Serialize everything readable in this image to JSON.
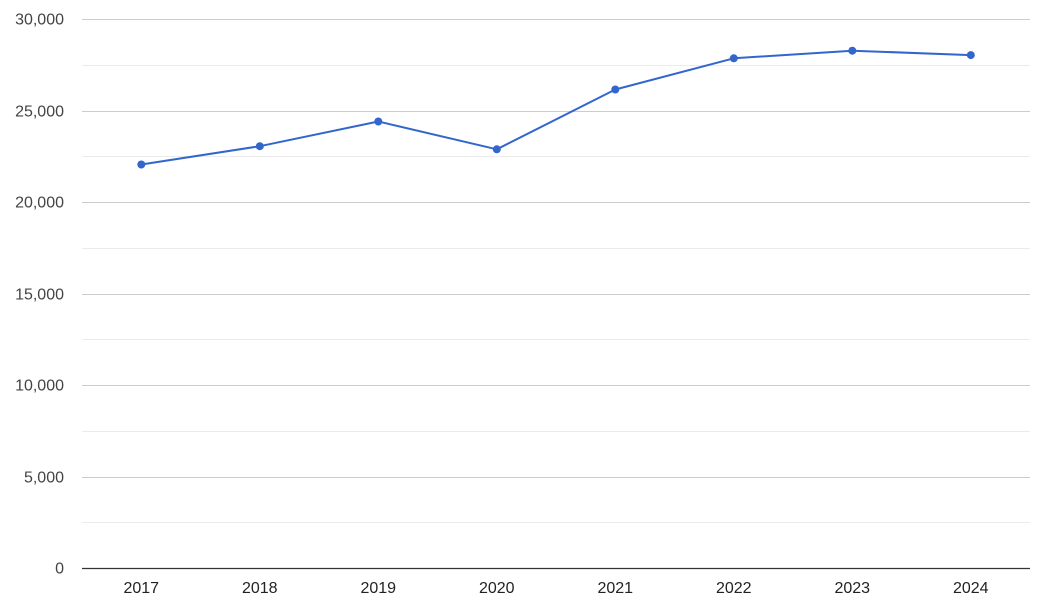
{
  "chart_data": {
    "type": "line",
    "title": "",
    "xlabel": "",
    "ylabel": "",
    "categories": [
      "2017",
      "2018",
      "2019",
      "2020",
      "2021",
      "2022",
      "2023",
      "2024"
    ],
    "series": [
      {
        "values": [
          22050,
          23050,
          24400,
          22880,
          26150,
          27850,
          28270,
          28030
        ]
      }
    ],
    "ylim": [
      0,
      30000
    ],
    "y_ticks": [
      0,
      5000,
      10000,
      15000,
      20000,
      25000,
      30000
    ],
    "y_tick_labels": [
      "0",
      "5,000",
      "10,000",
      "15,000",
      "20,000",
      "25,000",
      "30,000"
    ],
    "grid": true,
    "minor_grid": true,
    "legend": "none",
    "colors": {
      "line": "#3366cc",
      "major_grid": "#cccccc",
      "minor_grid": "#ebebeb",
      "baseline": "#333333"
    }
  }
}
